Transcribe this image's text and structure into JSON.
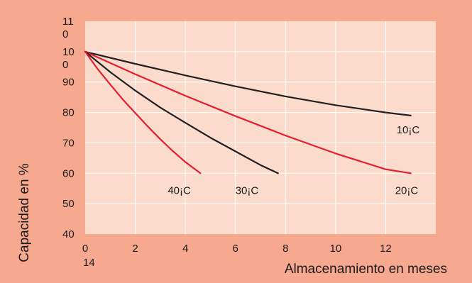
{
  "chart_data": {
    "type": "line",
    "xlabel": "Almacenamiento en meses",
    "ylabel": "Capacidad en %",
    "xlim": [
      0,
      14
    ],
    "ylim": [
      40,
      110
    ],
    "x_ticks": [
      "0",
      "2",
      "4",
      "6",
      "8",
      "10",
      "12",
      "14"
    ],
    "y_ticks": [
      "40",
      "50",
      "60",
      "70",
      "80",
      "90",
      "10\n0",
      "11\n0"
    ],
    "grid": true,
    "colors": {
      "background": "#f7a98f",
      "plot": "#fbdccc",
      "grid": "#ffffff",
      "black": "#231f20",
      "red": "#e31e2d"
    },
    "series": [
      {
        "name": "10¡C",
        "color": "#231f20",
        "x": [
          0,
          2,
          4,
          6,
          8,
          10,
          12,
          13
        ],
        "y": [
          100,
          96,
          92.2,
          88.6,
          85.3,
          82.4,
          80,
          79
        ]
      },
      {
        "name": "20¡C",
        "color": "#e31e2d",
        "x": [
          0,
          2,
          4,
          6,
          8,
          10,
          12,
          13
        ],
        "y": [
          100,
          92.6,
          85.5,
          78.8,
          72.4,
          66.5,
          61.3,
          60
        ]
      },
      {
        "name": "30¡C",
        "color": "#231f20",
        "x": [
          0,
          1,
          2,
          3,
          4,
          5,
          6,
          7,
          7.7
        ],
        "y": [
          100,
          93.3,
          87.2,
          81.6,
          76.6,
          71.7,
          67.2,
          62.7,
          60
        ]
      },
      {
        "name": "40¡C",
        "color": "#e31e2d",
        "x": [
          0,
          0.5,
          1,
          1.5,
          2,
          2.5,
          3,
          3.5,
          4,
          4.6
        ],
        "y": [
          100,
          94.3,
          89.2,
          84.3,
          79.8,
          75.4,
          71.2,
          67.3,
          63.7,
          60
        ]
      }
    ]
  }
}
